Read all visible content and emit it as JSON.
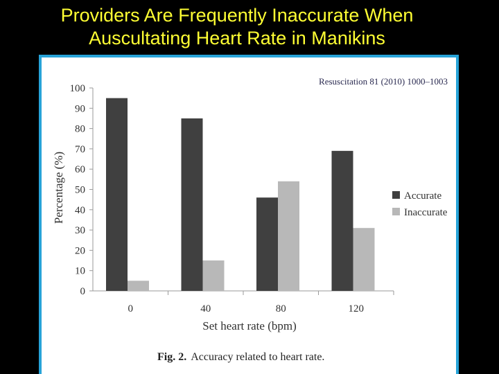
{
  "slide": {
    "title_line1": "Providers Are Frequently Inaccurate When",
    "title_line2": "Auscultating Heart Rate in Manikins"
  },
  "figure": {
    "citation": "Resuscitation 81 (2010) 1000–1003",
    "caption_label": "Fig. 2.",
    "caption_text": "Accuracy related to heart rate."
  },
  "chart_data": {
    "type": "bar",
    "title": "",
    "xlabel": "Set heart rate (bpm)",
    "ylabel": "Percentage (%)",
    "categories": [
      "0",
      "40",
      "80",
      "120"
    ],
    "series": [
      {
        "name": "Accurate",
        "values": [
          95,
          85,
          46,
          69
        ],
        "color": "#404040"
      },
      {
        "name": "Inaccurate",
        "values": [
          5,
          15,
          54,
          31
        ],
        "color": "#b8b8b8"
      }
    ],
    "ylim": [
      0,
      100
    ],
    "yticks": [
      0,
      10,
      20,
      30,
      40,
      50,
      60,
      70,
      80,
      90,
      100
    ],
    "grid": false,
    "legend": "right"
  },
  "colors": {
    "title": "#ffff33",
    "panel_border": "#27a3d8",
    "background": "#000000"
  }
}
